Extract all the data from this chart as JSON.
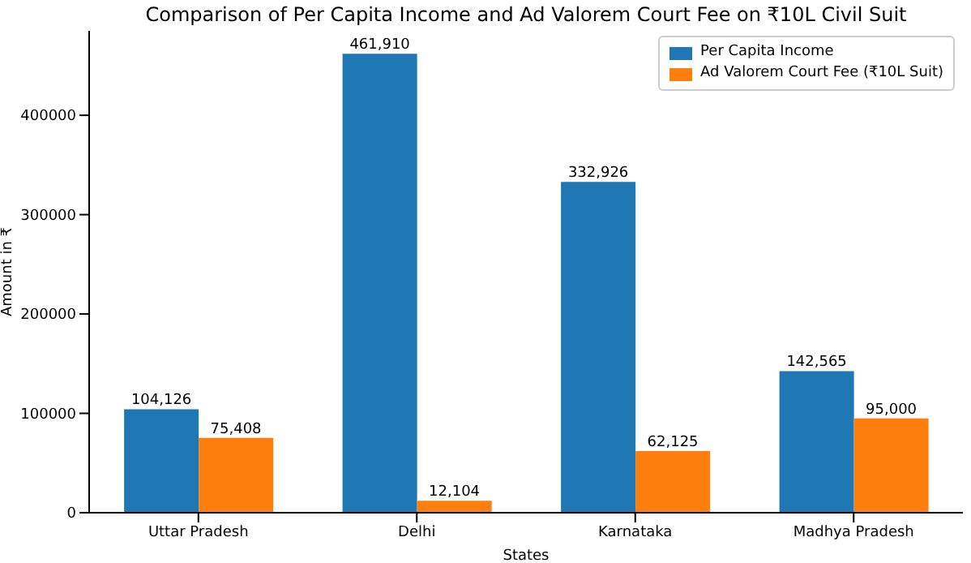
{
  "chart_data": {
    "type": "bar",
    "title": "Comparison of Per Capita Income and Ad Valorem Court Fee on ₹10L Civil Suit",
    "xlabel": "States",
    "ylabel": "Amount in ₹",
    "categories": [
      "Uttar Pradesh",
      "Delhi",
      "Karnataka",
      "Madhya Pradesh"
    ],
    "series": [
      {
        "name": "Per Capita Income",
        "color": "#1f77b4",
        "values": [
          104126,
          461910,
          332926,
          142565
        ],
        "value_labels": [
          "104,126",
          "461,910",
          "332,926",
          "142,565"
        ]
      },
      {
        "name": "Ad Valorem Court Fee (₹10L Suit)",
        "color": "#ff7f0e",
        "values": [
          75408,
          12104,
          62125,
          95000
        ],
        "value_labels": [
          "75,408",
          "12,104",
          "62,125",
          "95,000"
        ]
      }
    ],
    "ylim": [
      0,
      485000
    ],
    "yticks": [
      0,
      100000,
      200000,
      300000,
      400000
    ],
    "grid": false,
    "legend": "top right"
  }
}
